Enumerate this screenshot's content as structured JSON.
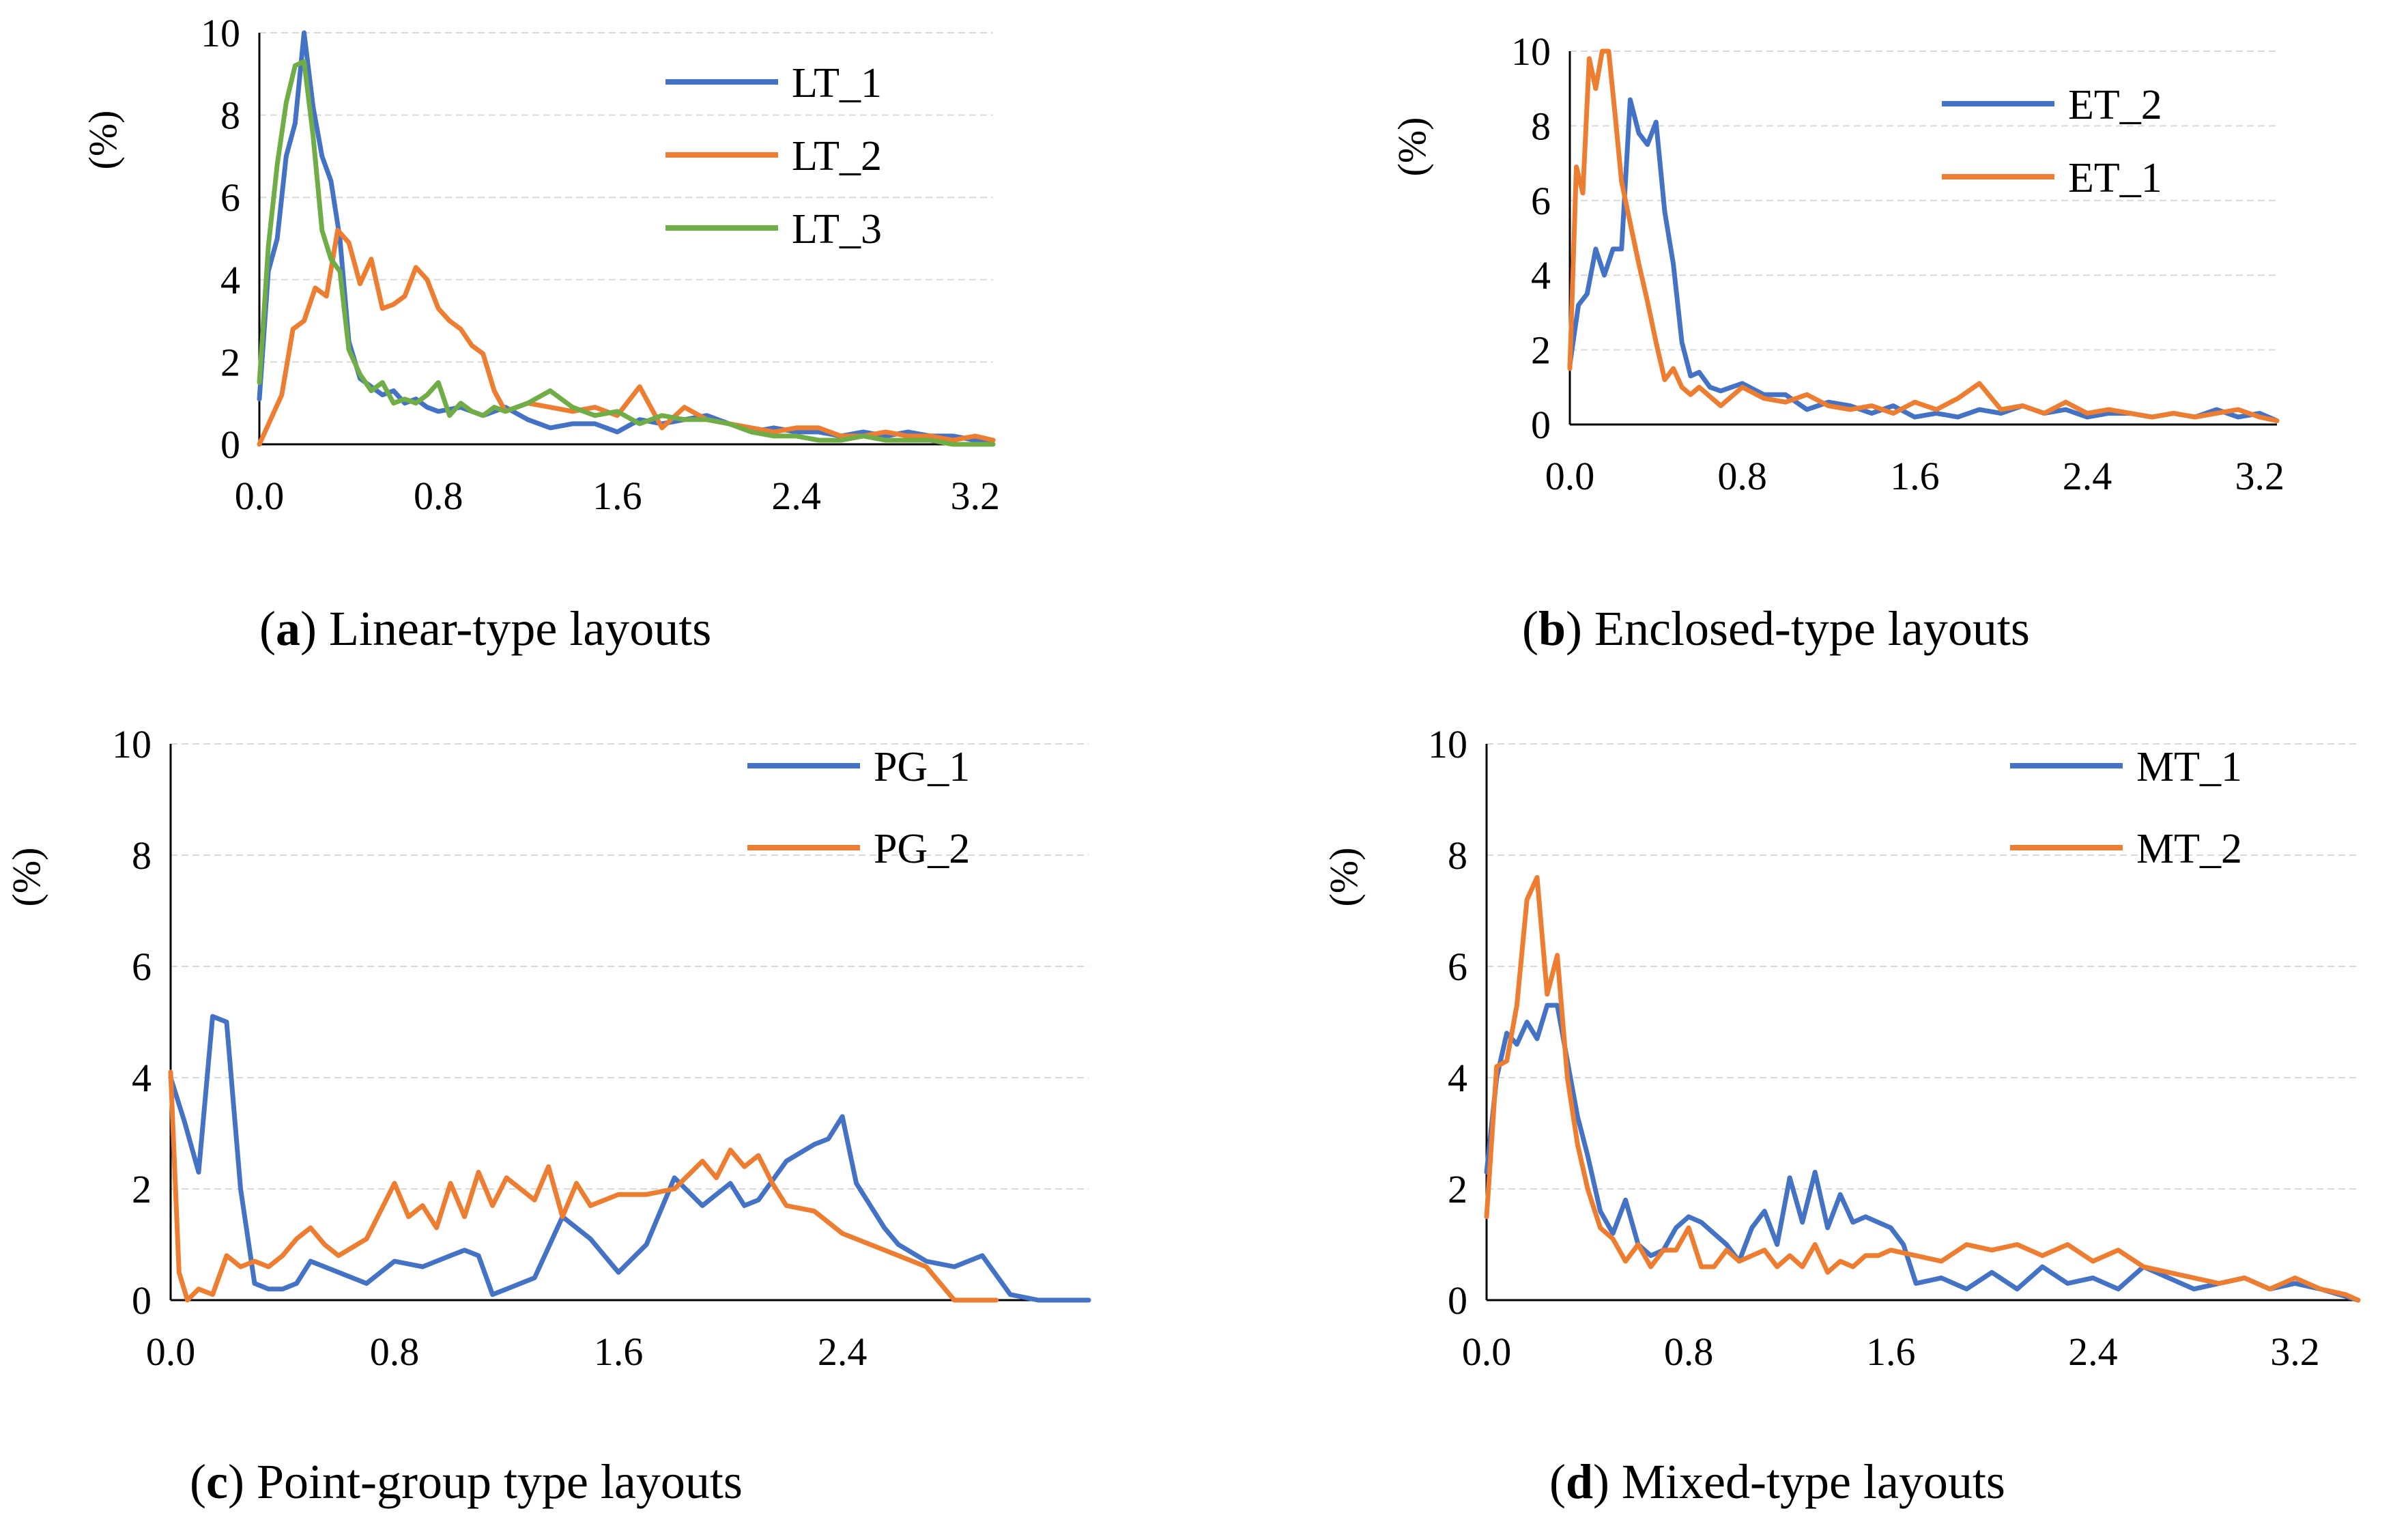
{
  "colors": {
    "blue": "#4472C4",
    "orange": "#ED7D31",
    "green": "#70AD47",
    "grid": "#d9d9d9"
  },
  "chart_data": [
    {
      "type": "line",
      "letter": "a",
      "title_rest": " Linear-type layouts",
      "ylabel": "(%)",
      "ylim": [
        0,
        10
      ],
      "yticks": [
        "0",
        "2",
        "4",
        "6",
        "8",
        "10"
      ],
      "xlim": [
        0,
        3.28
      ],
      "xticks": [
        "0.0",
        "0.8",
        "1.6",
        "2.4",
        "3.2"
      ],
      "series": [
        {
          "name": "LT_1",
          "color": "#4472C4",
          "x": [
            0.0,
            0.04,
            0.08,
            0.12,
            0.16,
            0.2,
            0.24,
            0.28,
            0.32,
            0.36,
            0.4,
            0.45,
            0.5,
            0.55,
            0.6,
            0.65,
            0.7,
            0.75,
            0.8,
            0.9,
            1.0,
            1.1,
            1.2,
            1.3,
            1.4,
            1.5,
            1.6,
            1.7,
            1.8,
            1.9,
            2.0,
            2.1,
            2.2,
            2.3,
            2.4,
            2.5,
            2.6,
            2.7,
            2.8,
            2.9,
            3.0,
            3.1,
            3.2,
            3.28
          ],
          "y": [
            1.1,
            4.2,
            5.0,
            7.0,
            7.8,
            10.0,
            8.2,
            7.0,
            6.4,
            5.0,
            2.5,
            1.6,
            1.4,
            1.2,
            1.3,
            1.0,
            1.1,
            0.9,
            0.8,
            0.9,
            0.7,
            0.9,
            0.6,
            0.4,
            0.5,
            0.5,
            0.3,
            0.6,
            0.5,
            0.6,
            0.7,
            0.5,
            0.3,
            0.4,
            0.3,
            0.3,
            0.2,
            0.3,
            0.2,
            0.3,
            0.2,
            0.2,
            0.1,
            0.1
          ]
        },
        {
          "name": "LT_2",
          "color": "#ED7D31",
          "x": [
            0.0,
            0.05,
            0.1,
            0.15,
            0.2,
            0.25,
            0.3,
            0.35,
            0.4,
            0.45,
            0.5,
            0.55,
            0.6,
            0.65,
            0.7,
            0.75,
            0.8,
            0.85,
            0.9,
            0.95,
            1.0,
            1.05,
            1.1,
            1.2,
            1.3,
            1.4,
            1.5,
            1.6,
            1.7,
            1.8,
            1.9,
            2.0,
            2.1,
            2.2,
            2.3,
            2.4,
            2.5,
            2.6,
            2.7,
            2.8,
            2.9,
            3.0,
            3.1,
            3.2,
            3.28
          ],
          "y": [
            0.0,
            0.6,
            1.2,
            2.8,
            3.0,
            3.8,
            3.6,
            5.2,
            4.9,
            3.9,
            4.5,
            3.3,
            3.4,
            3.6,
            4.3,
            4.0,
            3.3,
            3.0,
            2.8,
            2.4,
            2.2,
            1.3,
            0.8,
            1.0,
            0.9,
            0.8,
            0.9,
            0.7,
            1.4,
            0.4,
            0.9,
            0.6,
            0.5,
            0.4,
            0.3,
            0.4,
            0.4,
            0.2,
            0.2,
            0.3,
            0.2,
            0.2,
            0.1,
            0.2,
            0.1
          ]
        },
        {
          "name": "LT_3",
          "color": "#70AD47",
          "x": [
            0.0,
            0.04,
            0.08,
            0.12,
            0.16,
            0.2,
            0.24,
            0.28,
            0.32,
            0.36,
            0.4,
            0.45,
            0.5,
            0.55,
            0.6,
            0.65,
            0.7,
            0.75,
            0.8,
            0.85,
            0.9,
            0.95,
            1.0,
            1.05,
            1.1,
            1.2,
            1.3,
            1.4,
            1.5,
            1.6,
            1.7,
            1.8,
            1.9,
            2.0,
            2.1,
            2.2,
            2.3,
            2.4,
            2.5,
            2.6,
            2.7,
            2.8,
            2.9,
            3.0,
            3.1,
            3.2,
            3.28
          ],
          "y": [
            1.5,
            4.8,
            6.8,
            8.3,
            9.2,
            9.3,
            7.5,
            5.2,
            4.5,
            4.2,
            2.3,
            1.7,
            1.3,
            1.5,
            1.0,
            1.1,
            1.0,
            1.2,
            1.5,
            0.7,
            1.0,
            0.8,
            0.7,
            0.9,
            0.8,
            1.0,
            1.3,
            0.9,
            0.7,
            0.8,
            0.5,
            0.7,
            0.6,
            0.6,
            0.5,
            0.3,
            0.2,
            0.2,
            0.1,
            0.1,
            0.2,
            0.1,
            0.1,
            0.1,
            0.0,
            0.0,
            0.0
          ]
        }
      ]
    },
    {
      "type": "line",
      "letter": "b",
      "title_rest": " Enclosed-type layouts",
      "ylabel": "(%)",
      "ylim": [
        0,
        10
      ],
      "yticks": [
        "0",
        "2",
        "4",
        "6",
        "8",
        "10"
      ],
      "xlim": [
        0,
        3.28
      ],
      "xticks": [
        "0.0",
        "0.8",
        "1.6",
        "2.4",
        "3.2"
      ],
      "series": [
        {
          "name": "ET_2",
          "color": "#4472C4",
          "x": [
            0.0,
            0.04,
            0.08,
            0.12,
            0.16,
            0.2,
            0.24,
            0.28,
            0.32,
            0.36,
            0.4,
            0.44,
            0.48,
            0.52,
            0.56,
            0.6,
            0.65,
            0.7,
            0.8,
            0.9,
            1.0,
            1.1,
            1.2,
            1.3,
            1.4,
            1.5,
            1.6,
            1.7,
            1.8,
            1.9,
            2.0,
            2.1,
            2.2,
            2.3,
            2.4,
            2.5,
            2.6,
            2.7,
            2.8,
            2.9,
            3.0,
            3.1,
            3.2,
            3.28
          ],
          "y": [
            1.6,
            3.2,
            3.5,
            4.7,
            4.0,
            4.7,
            4.7,
            8.7,
            7.8,
            7.5,
            8.1,
            5.7,
            4.3,
            2.2,
            1.3,
            1.4,
            1.0,
            0.9,
            1.1,
            0.8,
            0.8,
            0.4,
            0.6,
            0.5,
            0.3,
            0.5,
            0.2,
            0.3,
            0.2,
            0.4,
            0.3,
            0.5,
            0.3,
            0.4,
            0.2,
            0.3,
            0.3,
            0.2,
            0.3,
            0.2,
            0.4,
            0.2,
            0.3,
            0.1
          ]
        },
        {
          "name": "ET_1",
          "color": "#ED7D31",
          "x": [
            0.0,
            0.03,
            0.06,
            0.09,
            0.12,
            0.15,
            0.18,
            0.21,
            0.24,
            0.28,
            0.32,
            0.36,
            0.4,
            0.44,
            0.48,
            0.52,
            0.56,
            0.6,
            0.7,
            0.8,
            0.9,
            1.0,
            1.1,
            1.2,
            1.3,
            1.4,
            1.5,
            1.6,
            1.7,
            1.8,
            1.9,
            2.0,
            2.1,
            2.2,
            2.3,
            2.4,
            2.5,
            2.6,
            2.7,
            2.8,
            2.9,
            3.0,
            3.1,
            3.2,
            3.28
          ],
          "y": [
            1.5,
            6.9,
            6.2,
            9.8,
            9.0,
            10.0,
            10.0,
            8.3,
            6.5,
            5.4,
            4.3,
            3.3,
            2.2,
            1.2,
            1.5,
            1.0,
            0.8,
            1.0,
            0.5,
            1.0,
            0.7,
            0.6,
            0.8,
            0.5,
            0.4,
            0.5,
            0.3,
            0.6,
            0.4,
            0.7,
            1.1,
            0.4,
            0.5,
            0.3,
            0.6,
            0.3,
            0.4,
            0.3,
            0.2,
            0.3,
            0.2,
            0.3,
            0.4,
            0.2,
            0.1
          ]
        }
      ]
    },
    {
      "type": "line",
      "letter": "c",
      "title_rest": " Point-group type layouts",
      "ylabel": "(%)",
      "ylim": [
        0,
        10
      ],
      "yticks": [
        "0",
        "2",
        "4",
        "6",
        "8",
        "10"
      ],
      "xlim": [
        0,
        3.28
      ],
      "xticks": [
        "0.0",
        "0.8",
        "1.6",
        "2.4"
      ],
      "series": [
        {
          "name": "PG_1",
          "color": "#4472C4",
          "x": [
            0.0,
            0.05,
            0.1,
            0.15,
            0.2,
            0.25,
            0.3,
            0.35,
            0.4,
            0.45,
            0.5,
            0.6,
            0.7,
            0.8,
            0.9,
            1.0,
            1.05,
            1.1,
            1.15,
            1.2,
            1.3,
            1.4,
            1.5,
            1.6,
            1.7,
            1.8,
            1.9,
            2.0,
            2.05,
            2.1,
            2.2,
            2.3,
            2.35,
            2.4,
            2.45,
            2.5,
            2.55,
            2.6,
            2.7,
            2.8,
            2.9,
            3.0,
            3.1,
            3.2,
            3.28
          ],
          "y": [
            4.0,
            3.2,
            2.3,
            5.1,
            5.0,
            2.0,
            0.3,
            0.2,
            0.2,
            0.3,
            0.7,
            0.5,
            0.3,
            0.7,
            0.6,
            0.8,
            0.9,
            0.8,
            0.1,
            0.2,
            0.4,
            1.5,
            1.1,
            0.5,
            1.0,
            2.2,
            1.7,
            2.1,
            1.7,
            1.8,
            2.5,
            2.8,
            2.9,
            3.3,
            2.1,
            1.7,
            1.3,
            1.0,
            0.7,
            0.6,
            0.8,
            0.1,
            0.0,
            0.0,
            0.0
          ]
        },
        {
          "name": "PG_2",
          "color": "#ED7D31",
          "x": [
            0.0,
            0.03,
            0.06,
            0.1,
            0.15,
            0.2,
            0.25,
            0.3,
            0.35,
            0.4,
            0.45,
            0.5,
            0.55,
            0.6,
            0.7,
            0.8,
            0.85,
            0.9,
            0.95,
            1.0,
            1.05,
            1.1,
            1.15,
            1.2,
            1.25,
            1.3,
            1.35,
            1.4,
            1.45,
            1.5,
            1.6,
            1.7,
            1.8,
            1.9,
            1.95,
            2.0,
            2.05,
            2.1,
            2.15,
            2.2,
            2.3,
            2.4,
            2.5,
            2.6,
            2.7,
            2.8,
            2.85,
            2.9,
            2.95
          ],
          "y": [
            4.1,
            0.5,
            0.0,
            0.2,
            0.1,
            0.8,
            0.6,
            0.7,
            0.6,
            0.8,
            1.1,
            1.3,
            1.0,
            0.8,
            1.1,
            2.1,
            1.5,
            1.7,
            1.3,
            2.1,
            1.5,
            2.3,
            1.7,
            2.2,
            2.0,
            1.8,
            2.4,
            1.5,
            2.1,
            1.7,
            1.9,
            1.9,
            2.0,
            2.5,
            2.2,
            2.7,
            2.4,
            2.6,
            2.1,
            1.7,
            1.6,
            1.2,
            1.0,
            0.8,
            0.6,
            0.0,
            0.0,
            0.0,
            0.0
          ]
        }
      ]
    },
    {
      "type": "line",
      "letter": "d",
      "title_rest": " Mixed-type layouts",
      "ylabel": "(%)",
      "ylim": [
        0,
        10
      ],
      "yticks": [
        "0",
        "2",
        "4",
        "6",
        "8",
        "10"
      ],
      "xlim": [
        0,
        3.45
      ],
      "xticks": [
        "0.0",
        "0.8",
        "1.6",
        "2.4",
        "3.2"
      ],
      "series": [
        {
          "name": "MT_1",
          "color": "#4472C4",
          "x": [
            0.0,
            0.04,
            0.08,
            0.12,
            0.16,
            0.2,
            0.24,
            0.28,
            0.32,
            0.36,
            0.4,
            0.45,
            0.5,
            0.55,
            0.6,
            0.65,
            0.7,
            0.75,
            0.8,
            0.85,
            0.9,
            0.95,
            1.0,
            1.05,
            1.1,
            1.15,
            1.2,
            1.25,
            1.3,
            1.35,
            1.4,
            1.45,
            1.5,
            1.55,
            1.6,
            1.65,
            1.7,
            1.8,
            1.9,
            2.0,
            2.1,
            2.2,
            2.3,
            2.4,
            2.5,
            2.6,
            2.7,
            2.8,
            2.9,
            3.0,
            3.1,
            3.2,
            3.3,
            3.45
          ],
          "y": [
            2.3,
            4.0,
            4.8,
            4.6,
            5.0,
            4.7,
            5.3,
            5.3,
            4.3,
            3.3,
            2.6,
            1.6,
            1.2,
            1.8,
            1.0,
            0.8,
            0.9,
            1.3,
            1.5,
            1.4,
            1.2,
            1.0,
            0.7,
            1.3,
            1.6,
            1.0,
            2.2,
            1.4,
            2.3,
            1.3,
            1.9,
            1.4,
            1.5,
            1.4,
            1.3,
            1.0,
            0.3,
            0.4,
            0.2,
            0.5,
            0.2,
            0.6,
            0.3,
            0.4,
            0.2,
            0.6,
            0.4,
            0.2,
            0.3,
            0.4,
            0.2,
            0.3,
            0.2,
            0.0
          ]
        },
        {
          "name": "MT_2",
          "color": "#ED7D31",
          "x": [
            0.0,
            0.04,
            0.08,
            0.12,
            0.16,
            0.2,
            0.24,
            0.28,
            0.32,
            0.36,
            0.4,
            0.45,
            0.5,
            0.55,
            0.6,
            0.65,
            0.7,
            0.75,
            0.8,
            0.85,
            0.9,
            0.95,
            1.0,
            1.05,
            1.1,
            1.15,
            1.2,
            1.25,
            1.3,
            1.35,
            1.4,
            1.45,
            1.5,
            1.55,
            1.6,
            1.7,
            1.8,
            1.9,
            2.0,
            2.1,
            2.2,
            2.3,
            2.4,
            2.5,
            2.6,
            2.7,
            2.8,
            2.9,
            3.0,
            3.1,
            3.2,
            3.3,
            3.4,
            3.45
          ],
          "y": [
            1.5,
            4.2,
            4.3,
            5.3,
            7.2,
            7.6,
            5.5,
            6.2,
            4.0,
            2.8,
            2.0,
            1.3,
            1.1,
            0.7,
            1.0,
            0.6,
            0.9,
            0.9,
            1.3,
            0.6,
            0.6,
            0.9,
            0.7,
            0.8,
            0.9,
            0.6,
            0.8,
            0.6,
            1.0,
            0.5,
            0.7,
            0.6,
            0.8,
            0.8,
            0.9,
            0.8,
            0.7,
            1.0,
            0.9,
            1.0,
            0.8,
            1.0,
            0.7,
            0.9,
            0.6,
            0.5,
            0.4,
            0.3,
            0.4,
            0.2,
            0.4,
            0.2,
            0.1,
            0.0
          ]
        }
      ]
    }
  ]
}
